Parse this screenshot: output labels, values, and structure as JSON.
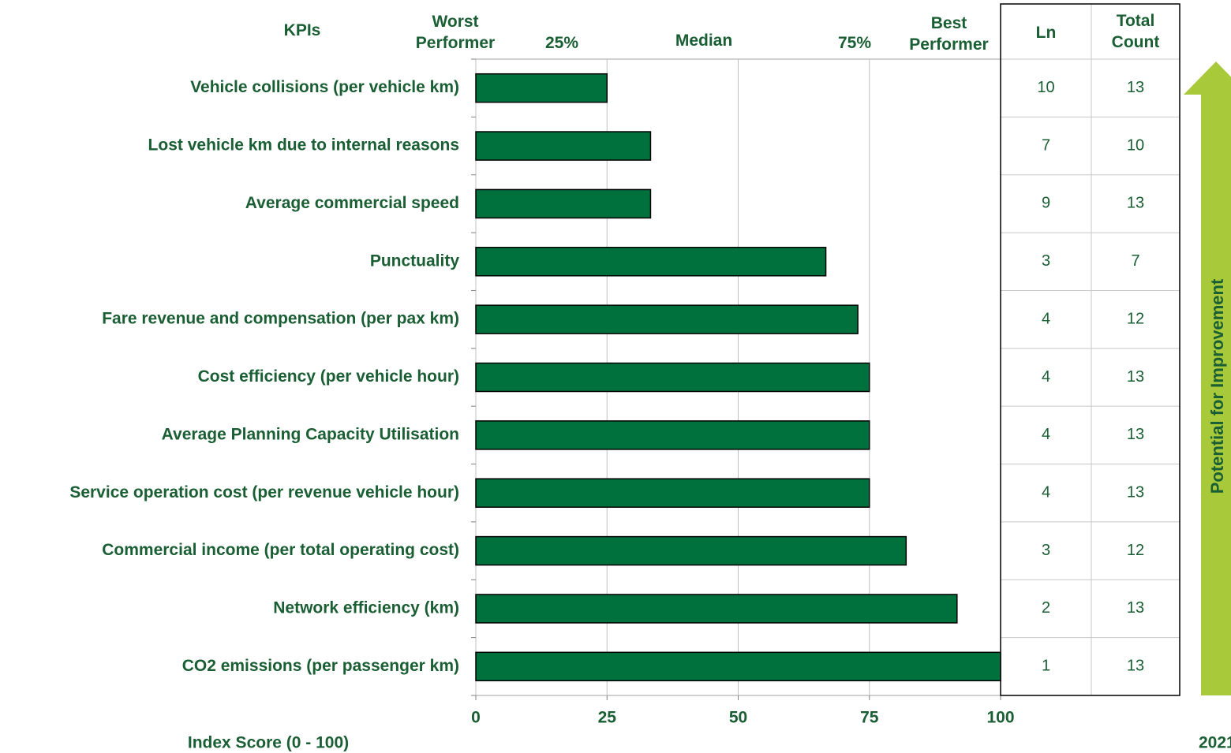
{
  "chart_data": {
    "type": "bar",
    "orientation": "horizontal",
    "categories": [
      "Vehicle collisions (per vehicle km)",
      "Lost vehicle km due to internal reasons",
      "Average commercial speed",
      "Punctuality",
      "Fare revenue and compensation (per pax km)",
      "Cost efficiency (per vehicle hour)",
      "Average Planning Capacity Utilisation",
      "Service operation cost (per revenue vehicle hour)",
      "Commercial income (per total operating cost)",
      "Network efficiency (km)",
      "CO2 emissions (per passenger km)"
    ],
    "values": [
      25,
      33.3,
      33.3,
      66.7,
      72.8,
      75,
      75,
      75,
      82,
      91.7,
      100
    ],
    "color": "#00703c",
    "xlim": [
      0,
      100
    ],
    "xticks": [
      0,
      25,
      50,
      75,
      100
    ],
    "grid": true,
    "xlabel": "Index Score (0 - 100)",
    "header": {
      "kpis": "KPIs",
      "markers": [
        "Worst Performer",
        "25%",
        "Median",
        "75%",
        "Best Performer"
      ]
    },
    "table": {
      "columns": [
        "Ln",
        "Total Count"
      ],
      "rows": [
        [
          10,
          13
        ],
        [
          7,
          10
        ],
        [
          9,
          13
        ],
        [
          3,
          7
        ],
        [
          4,
          12
        ],
        [
          4,
          13
        ],
        [
          4,
          13
        ],
        [
          4,
          13
        ],
        [
          3,
          12
        ],
        [
          2,
          13
        ],
        [
          1,
          13
        ]
      ]
    },
    "arrow_label": "Potential for Improvement",
    "year": "2021"
  }
}
